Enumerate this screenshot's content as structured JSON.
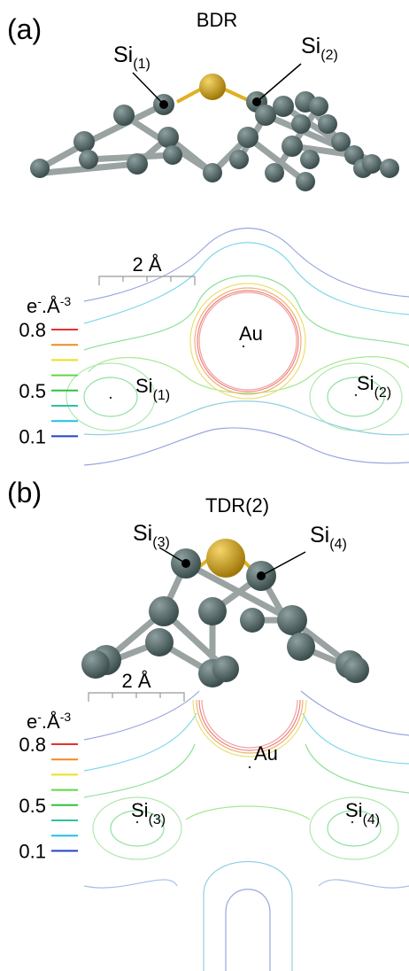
{
  "panels": [
    {
      "label": "(a)",
      "title": "BDR",
      "atoms": [
        {
          "base": "Si",
          "sub": "(1)"
        },
        {
          "base": "Si",
          "sub": "(2)"
        }
      ],
      "scale": "2 Å",
      "unit": {
        "base": "e",
        "sup": "-",
        "mid": ".Å",
        "sup2": "-3"
      },
      "levels": [
        0.8,
        0.5,
        0.1
      ],
      "map_labels": {
        "au": "Au",
        "left": {
          "base": "Si",
          "sub": "(1)"
        },
        "right": {
          "base": "Si",
          "sub": "(2)"
        }
      }
    },
    {
      "label": "(b)",
      "title": "TDR(2)",
      "atoms": [
        {
          "base": "Si",
          "sub": "(3)"
        },
        {
          "base": "Si",
          "sub": "(4)"
        }
      ],
      "scale": "2 Å",
      "unit": {
        "base": "e",
        "sup": "-",
        "mid": ".Å",
        "sup2": "-3"
      },
      "levels": [
        0.8,
        0.5,
        0.1
      ],
      "map_labels": {
        "au": "Au",
        "left": {
          "base": "Si",
          "sub": "(3)"
        },
        "right": {
          "base": "Si",
          "sub": "(4)"
        }
      }
    }
  ]
}
